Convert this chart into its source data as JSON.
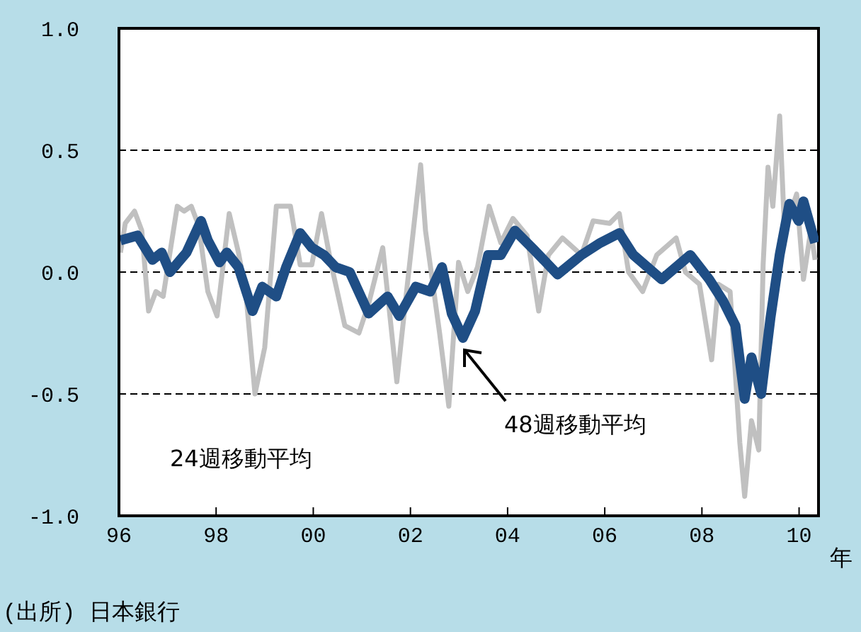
{
  "chart_data": {
    "type": "line",
    "xlabel": "年",
    "annotations": [
      "(出所) 日本銀行"
    ],
    "xlim": [
      1996,
      2010.4
    ],
    "xticks": [
      {
        "value": 1996,
        "label": "96"
      },
      {
        "value": 1998,
        "label": "98"
      },
      {
        "value": 2000,
        "label": "00"
      },
      {
        "value": 2002,
        "label": "02"
      },
      {
        "value": 2004,
        "label": "04"
      },
      {
        "value": 2006,
        "label": "06"
      },
      {
        "value": 2008,
        "label": "08"
      },
      {
        "value": 2010,
        "label": "10"
      }
    ],
    "ylim": [
      -1,
      1
    ],
    "yticks": [
      {
        "value": -1,
        "label": "-1.0"
      },
      {
        "value": -0.5,
        "label": "-0.5"
      },
      {
        "value": 0,
        "label": "0.0"
      },
      {
        "value": 0.5,
        "label": "0.5"
      },
      {
        "value": 1,
        "label": "1.0"
      }
    ],
    "grid": "y",
    "marker": "none",
    "line_style": "solid",
    "legend": false,
    "series": [
      {
        "name": "24週移動平均",
        "color": "#c0c0c0",
        "x": [
          1996.03,
          1996.13,
          1996.32,
          1996.47,
          1996.61,
          1996.76,
          1996.91,
          1997.05,
          1997.2,
          1997.34,
          1997.49,
          1997.64,
          1997.83,
          1998.02,
          1998.27,
          1998.46,
          1998.61,
          1998.8,
          1999.0,
          1999.24,
          1999.53,
          1999.73,
          1999.97,
          2000.17,
          2000.36,
          2000.65,
          2000.94,
          2001.14,
          2001.43,
          2001.72,
          2001.92,
          2002.21,
          2002.31,
          2002.6,
          2002.79,
          2002.99,
          2003.18,
          2003.38,
          2003.62,
          2003.86,
          2004.11,
          2004.4,
          2004.64,
          2004.84,
          2005.13,
          2005.52,
          2005.76,
          2006.1,
          2006.3,
          2006.49,
          2006.78,
          2007.07,
          2007.47,
          2007.66,
          2007.95,
          2008.2,
          2008.34,
          2008.58,
          2008.78,
          2008.88,
          2009.02,
          2009.17,
          2009.26,
          2009.36,
          2009.46,
          2009.6,
          2009.7,
          2009.95,
          2010.09,
          2010.24,
          2010.33
        ],
        "values": [
          0.08,
          0.2,
          0.25,
          0.17,
          -0.16,
          -0.08,
          -0.1,
          0.08,
          0.27,
          0.25,
          0.27,
          0.19,
          -0.08,
          -0.18,
          0.24,
          0.08,
          -0.08,
          -0.5,
          -0.31,
          0.27,
          0.27,
          0.03,
          0.03,
          0.24,
          0.04,
          -0.22,
          -0.25,
          -0.13,
          0.1,
          -0.45,
          -0.08,
          0.44,
          0.17,
          -0.25,
          -0.55,
          0.04,
          -0.08,
          0.02,
          0.27,
          0.12,
          0.22,
          0.15,
          -0.16,
          0.07,
          0.14,
          0.07,
          0.21,
          0.2,
          0.24,
          0,
          -0.08,
          0.07,
          0.14,
          0,
          -0.05,
          -0.36,
          -0.05,
          -0.08,
          -0.7,
          -0.92,
          -0.61,
          -0.73,
          0.03,
          0.43,
          0.27,
          0.64,
          0.17,
          0.32,
          -0.03,
          0.17,
          0.05
        ]
      },
      {
        "name": "48週移動平均",
        "color": "#1f4e85",
        "x": [
          1996.03,
          1996.38,
          1996.69,
          1996.88,
          1997.05,
          1997.39,
          1997.69,
          1997.83,
          1998.07,
          1998.22,
          1998.46,
          1998.75,
          1998.95,
          1999.24,
          1999.44,
          1999.73,
          1999.97,
          2000.22,
          2000.46,
          2000.75,
          2001.14,
          2001.53,
          2001.77,
          2002.11,
          2002.41,
          2002.65,
          2002.85,
          2003.08,
          2003.33,
          2003.6,
          2003.86,
          2004.15,
          2004.55,
          2005.03,
          2005.52,
          2005.91,
          2006.3,
          2006.59,
          2007.17,
          2007.76,
          2008.15,
          2008.44,
          2008.69,
          2008.88,
          2009.02,
          2009.22,
          2009.41,
          2009.6,
          2009.8,
          2009.99,
          2010.09,
          2010.33
        ],
        "values": [
          0.13,
          0.15,
          0.05,
          0.08,
          0,
          0.08,
          0.21,
          0.13,
          0.04,
          0.08,
          0.02,
          -0.16,
          -0.06,
          -0.1,
          0.02,
          0.16,
          0.1,
          0.07,
          0.02,
          0,
          -0.17,
          -0.1,
          -0.18,
          -0.06,
          -0.08,
          0.02,
          -0.17,
          -0.27,
          -0.16,
          0.07,
          0.07,
          0.17,
          0.09,
          -0.01,
          0.07,
          0.12,
          0.16,
          0.07,
          -0.03,
          0.07,
          -0.03,
          -0.12,
          -0.22,
          -0.52,
          -0.35,
          -0.5,
          -0.19,
          0.07,
          0.28,
          0.21,
          0.29,
          0.12
        ]
      }
    ]
  }
}
